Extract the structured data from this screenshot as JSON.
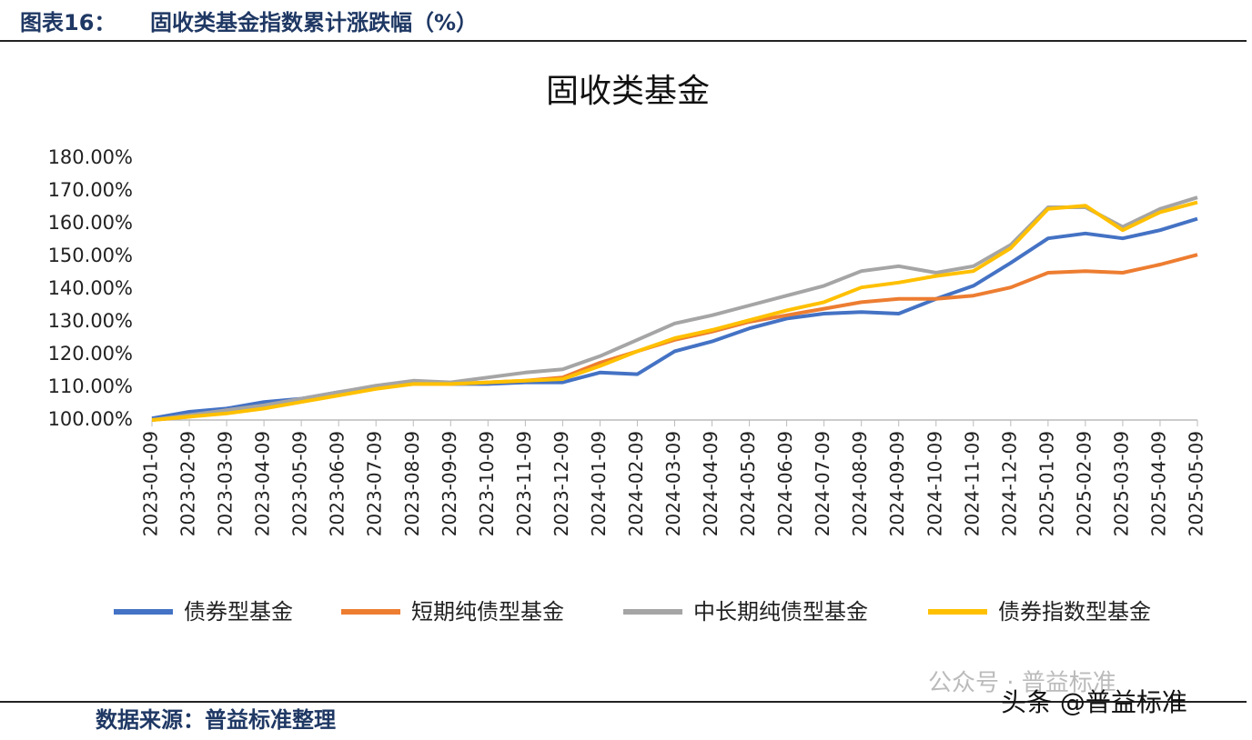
{
  "header": {
    "label": "图表16：",
    "title": "固收类基金指数累计涨跌幅（%）"
  },
  "footer": {
    "source": "数据来源：普益标准整理"
  },
  "watermark": {
    "wechat": "公众号 · 普益标准",
    "toutiao": "头条 @普益标准"
  },
  "chart_data": {
    "type": "line",
    "title": "固收类基金",
    "categories": [
      "2023-01-09",
      "2023-02-09",
      "2023-03-09",
      "2023-04-09",
      "2023-05-09",
      "2023-06-09",
      "2023-07-09",
      "2023-08-09",
      "2023-09-09",
      "2023-10-09",
      "2023-11-09",
      "2023-12-09",
      "2024-01-09",
      "2024-02-09",
      "2024-03-09",
      "2024-04-09",
      "2024-05-09",
      "2024-06-09",
      "2024-07-09",
      "2024-08-09",
      "2024-09-09",
      "2024-10-09",
      "2024-11-09",
      "2024-12-09",
      "2025-01-09",
      "2025-02-09",
      "2025-03-09",
      "2025-04-09",
      "2025-05-09"
    ],
    "series": [
      {
        "name": "债券型基金",
        "color": "#4472c4",
        "values": [
          100.5,
          102.5,
          103.5,
          105.5,
          106.5,
          108.5,
          110,
          111.5,
          111,
          111,
          111.5,
          111.5,
          114.5,
          114,
          121,
          124,
          128,
          131,
          132.5,
          133,
          132.5,
          137,
          141,
          148,
          155.5,
          157,
          155.5,
          158,
          161.5
        ]
      },
      {
        "name": "短期纯债型基金",
        "color": "#ed7d31",
        "values": [
          100,
          101,
          103,
          104,
          106,
          108,
          110,
          111,
          111,
          111.5,
          112,
          113,
          117.5,
          121,
          124.5,
          127,
          130,
          132,
          134,
          136,
          137,
          137,
          138,
          140.5,
          145,
          145.5,
          145,
          147.5,
          150.5
        ]
      },
      {
        "name": "中长期纯债型基金",
        "color": "#a5a5a5",
        "values": [
          100,
          101.5,
          103,
          104.5,
          106.5,
          108.5,
          110.5,
          112,
          111.5,
          113,
          114.5,
          115.5,
          119.5,
          124.5,
          129.5,
          132,
          135,
          138,
          141,
          145.5,
          147,
          145,
          147,
          153.5,
          165,
          165,
          159,
          164.5,
          168
        ]
      },
      {
        "name": "债券指数型基金",
        "color": "#ffc000",
        "values": [
          100,
          101,
          102,
          103.5,
          105.5,
          107.5,
          109.5,
          111,
          111,
          111.5,
          112,
          112.5,
          116.5,
          121,
          125,
          127.5,
          130.5,
          133.5,
          136,
          140.5,
          142,
          144,
          145.5,
          152.5,
          164.5,
          165.5,
          158,
          163.5,
          166.5
        ]
      }
    ],
    "ylim": [
      100,
      180
    ],
    "yticks": [
      {
        "value": 100,
        "label": "100.00%"
      },
      {
        "value": 110,
        "label": "110.00%"
      },
      {
        "value": 120,
        "label": "120.00%"
      },
      {
        "value": 130,
        "label": "130.00%"
      },
      {
        "value": 140,
        "label": "140.00%"
      },
      {
        "value": 150,
        "label": "150.00%"
      },
      {
        "value": 160,
        "label": "160.00%"
      },
      {
        "value": 170,
        "label": "170.00%"
      },
      {
        "value": 180,
        "label": "180.00%"
      }
    ],
    "grid": false
  }
}
